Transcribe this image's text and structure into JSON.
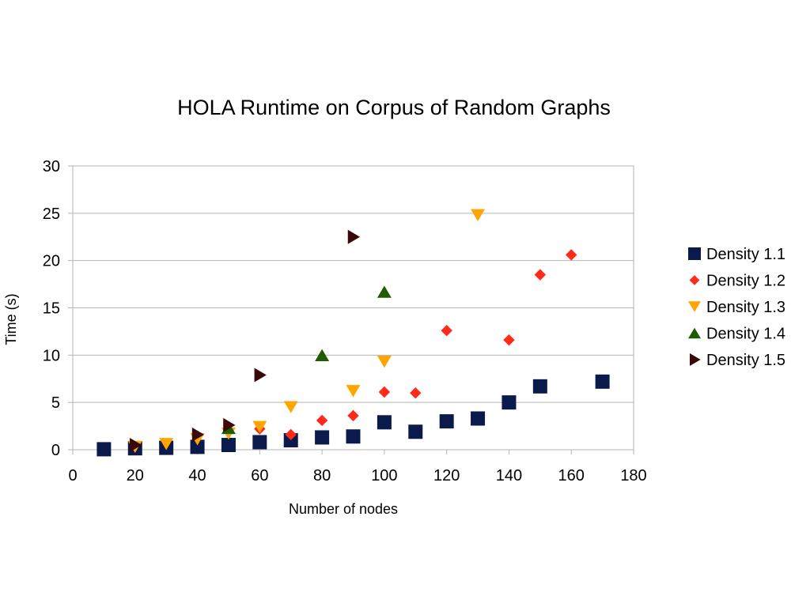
{
  "chart_data": {
    "type": "scatter",
    "title": "HOLA Runtime on Corpus of Random Graphs",
    "xlabel": "Number of nodes",
    "ylabel": "Time (s)",
    "xlim": [
      0,
      180
    ],
    "ylim": [
      0,
      30
    ],
    "xticks": [
      0,
      20,
      40,
      60,
      80,
      100,
      120,
      140,
      160,
      180
    ],
    "yticks": [
      0,
      5,
      10,
      15,
      20,
      25,
      30
    ],
    "grid": "horizontal",
    "legend_position": "right",
    "series": [
      {
        "name": "Density 1.1",
        "marker": "square",
        "color": "#0a1a4a",
        "points": [
          [
            10,
            0.05
          ],
          [
            20,
            0.15
          ],
          [
            30,
            0.2
          ],
          [
            40,
            0.3
          ],
          [
            50,
            0.5
          ],
          [
            60,
            0.8
          ],
          [
            70,
            1.0
          ],
          [
            80,
            1.3
          ],
          [
            90,
            1.4
          ],
          [
            100,
            2.9
          ],
          [
            110,
            1.9
          ],
          [
            120,
            3.0
          ],
          [
            130,
            3.3
          ],
          [
            140,
            5.0
          ],
          [
            150,
            6.7
          ],
          [
            170,
            7.2
          ]
        ]
      },
      {
        "name": "Density 1.2",
        "marker": "diamond",
        "color": "#ff2a1a",
        "points": [
          [
            60,
            2.2
          ],
          [
            70,
            1.6
          ],
          [
            80,
            3.1
          ],
          [
            90,
            3.6
          ],
          [
            100,
            6.1
          ],
          [
            110,
            6.0
          ],
          [
            120,
            12.6
          ],
          [
            140,
            11.6
          ],
          [
            150,
            18.5
          ],
          [
            160,
            20.6
          ]
        ]
      },
      {
        "name": "Density 1.3",
        "marker": "triangle-down",
        "color": "#ffa500",
        "points": [
          [
            20,
            0.3
          ],
          [
            30,
            0.6
          ],
          [
            40,
            1.1
          ],
          [
            50,
            1.7
          ],
          [
            60,
            2.4
          ],
          [
            70,
            4.5
          ],
          [
            90,
            6.2
          ],
          [
            100,
            9.3
          ],
          [
            130,
            24.8
          ]
        ]
      },
      {
        "name": "Density 1.4",
        "marker": "triangle-up",
        "color": "#1f5c00",
        "points": [
          [
            50,
            2.3
          ],
          [
            80,
            10.0
          ],
          [
            100,
            16.7
          ]
        ]
      },
      {
        "name": "Density 1.5",
        "marker": "triangle-right",
        "color": "#3a0808",
        "points": [
          [
            20,
            0.5
          ],
          [
            40,
            1.6
          ],
          [
            50,
            2.6
          ],
          [
            60,
            7.9
          ],
          [
            90,
            22.5
          ]
        ]
      }
    ]
  }
}
